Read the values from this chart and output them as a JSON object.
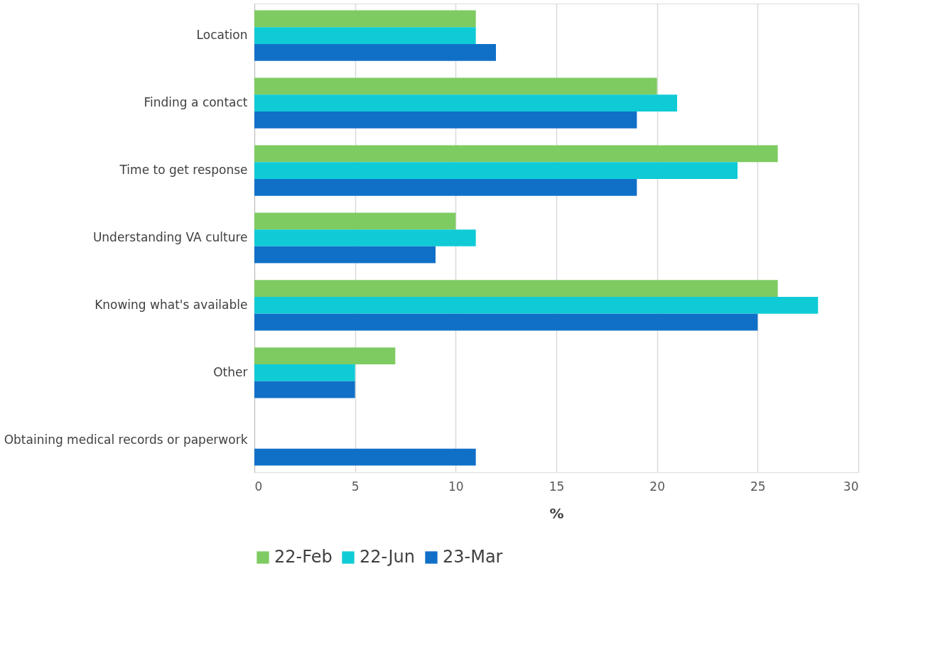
{
  "chart_data": {
    "type": "bar",
    "orientation": "horizontal",
    "xlabel": "%",
    "categories": [
      "Location",
      "Finding a contact",
      "Time to get response",
      "Understanding VA culture",
      "Knowing what's available",
      "Other",
      "Obtaining medical records or paperwork"
    ],
    "series": [
      {
        "name": "22-Feb",
        "color": "#7ecb62",
        "values": [
          11,
          20,
          26,
          10,
          26,
          7,
          null
        ]
      },
      {
        "name": "22-Jun",
        "color": "#0fcbd6",
        "values": [
          11,
          21,
          24,
          11,
          28,
          5,
          null
        ]
      },
      {
        "name": "23-Mar",
        "color": "#1070c8",
        "values": [
          12,
          19,
          19,
          9,
          25,
          5,
          11
        ]
      }
    ],
    "xlim": [
      0,
      30
    ],
    "xticks": [
      0,
      5,
      10,
      15,
      20,
      25,
      30
    ],
    "grid": "x",
    "legend": "bottom"
  }
}
